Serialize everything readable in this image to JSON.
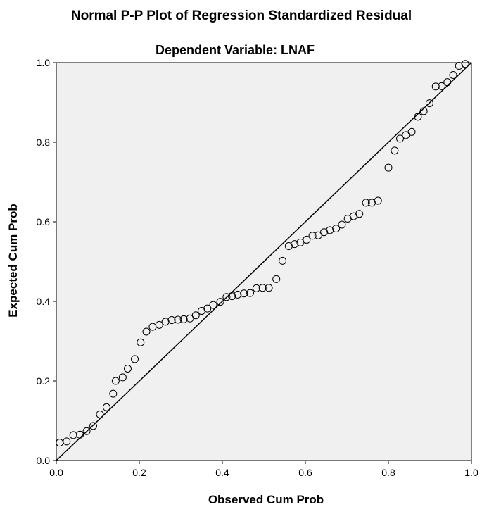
{
  "chart_data": {
    "type": "scatter",
    "title": "Normal P-P Plot of Regression Standardized Residual",
    "subtitle": "Dependent Variable: LNAF",
    "xlabel": "Observed Cum Prob",
    "ylabel": "Expected Cum Prob",
    "xlim": [
      0.0,
      1.0
    ],
    "ylim": [
      0.0,
      1.0
    ],
    "xticks": [
      "0.0",
      "0.2",
      "0.4",
      "0.6",
      "0.8",
      "1.0"
    ],
    "yticks": [
      "0.0",
      "0.2",
      "0.4",
      "0.6",
      "0.8",
      "1.0"
    ],
    "grid": false,
    "reference_line": {
      "from": [
        0.0,
        0.0
      ],
      "to": [
        1.0,
        1.0
      ]
    },
    "colors": {
      "plot_background": "#f0f0f0",
      "marker_stroke": "#000000",
      "line": "#000000"
    },
    "points": [
      {
        "x": 0.008,
        "y": 0.045
      },
      {
        "x": 0.025,
        "y": 0.048
      },
      {
        "x": 0.041,
        "y": 0.064
      },
      {
        "x": 0.057,
        "y": 0.065
      },
      {
        "x": 0.073,
        "y": 0.074
      },
      {
        "x": 0.089,
        "y": 0.087
      },
      {
        "x": 0.105,
        "y": 0.116
      },
      {
        "x": 0.121,
        "y": 0.134
      },
      {
        "x": 0.137,
        "y": 0.168
      },
      {
        "x": 0.143,
        "y": 0.2
      },
      {
        "x": 0.16,
        "y": 0.209
      },
      {
        "x": 0.172,
        "y": 0.231
      },
      {
        "x": 0.189,
        "y": 0.255
      },
      {
        "x": 0.203,
        "y": 0.297
      },
      {
        "x": 0.217,
        "y": 0.324
      },
      {
        "x": 0.232,
        "y": 0.336
      },
      {
        "x": 0.248,
        "y": 0.341
      },
      {
        "x": 0.263,
        "y": 0.349
      },
      {
        "x": 0.278,
        "y": 0.353
      },
      {
        "x": 0.293,
        "y": 0.354
      },
      {
        "x": 0.307,
        "y": 0.355
      },
      {
        "x": 0.322,
        "y": 0.357
      },
      {
        "x": 0.336,
        "y": 0.365
      },
      {
        "x": 0.35,
        "y": 0.376
      },
      {
        "x": 0.364,
        "y": 0.382
      },
      {
        "x": 0.378,
        "y": 0.391
      },
      {
        "x": 0.395,
        "y": 0.399
      },
      {
        "x": 0.41,
        "y": 0.411
      },
      {
        "x": 0.423,
        "y": 0.413
      },
      {
        "x": 0.437,
        "y": 0.417
      },
      {
        "x": 0.452,
        "y": 0.42
      },
      {
        "x": 0.467,
        "y": 0.421
      },
      {
        "x": 0.482,
        "y": 0.433
      },
      {
        "x": 0.497,
        "y": 0.434
      },
      {
        "x": 0.512,
        "y": 0.434
      },
      {
        "x": 0.53,
        "y": 0.456
      },
      {
        "x": 0.545,
        "y": 0.502
      },
      {
        "x": 0.56,
        "y": 0.539
      },
      {
        "x": 0.574,
        "y": 0.544
      },
      {
        "x": 0.588,
        "y": 0.548
      },
      {
        "x": 0.603,
        "y": 0.555
      },
      {
        "x": 0.617,
        "y": 0.565
      },
      {
        "x": 0.631,
        "y": 0.566
      },
      {
        "x": 0.645,
        "y": 0.574
      },
      {
        "x": 0.659,
        "y": 0.579
      },
      {
        "x": 0.674,
        "y": 0.583
      },
      {
        "x": 0.688,
        "y": 0.593
      },
      {
        "x": 0.702,
        "y": 0.608
      },
      {
        "x": 0.716,
        "y": 0.614
      },
      {
        "x": 0.73,
        "y": 0.62
      },
      {
        "x": 0.746,
        "y": 0.648
      },
      {
        "x": 0.76,
        "y": 0.648
      },
      {
        "x": 0.775,
        "y": 0.653
      },
      {
        "x": 0.8,
        "y": 0.736
      },
      {
        "x": 0.815,
        "y": 0.779
      },
      {
        "x": 0.828,
        "y": 0.809
      },
      {
        "x": 0.842,
        "y": 0.818
      },
      {
        "x": 0.856,
        "y": 0.826
      },
      {
        "x": 0.871,
        "y": 0.864
      },
      {
        "x": 0.885,
        "y": 0.878
      },
      {
        "x": 0.899,
        "y": 0.898
      },
      {
        "x": 0.914,
        "y": 0.94
      },
      {
        "x": 0.928,
        "y": 0.941
      },
      {
        "x": 0.942,
        "y": 0.951
      },
      {
        "x": 0.956,
        "y": 0.969
      },
      {
        "x": 0.97,
        "y": 0.992
      },
      {
        "x": 0.985,
        "y": 0.997
      }
    ]
  }
}
